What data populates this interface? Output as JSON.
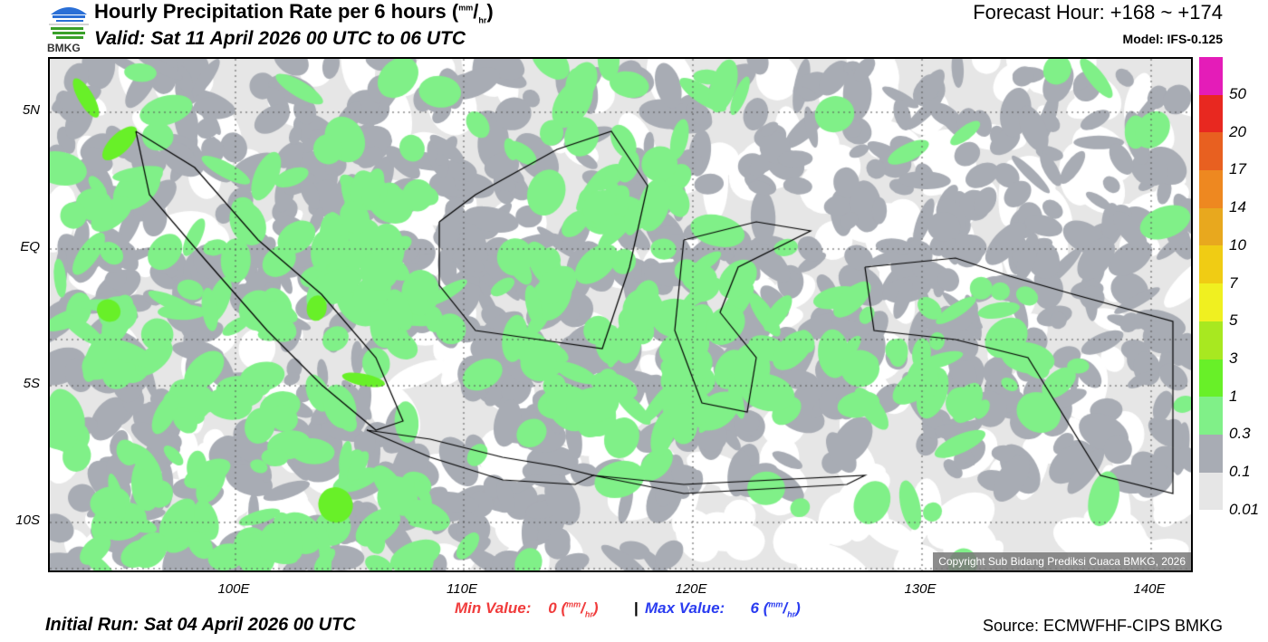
{
  "header": {
    "title": "Hourly Precipitation Rate per 6 hours",
    "unit_num": "mm",
    "unit_den": "hr",
    "valid": "Valid: Sat 11 April 2026 00 UTC to 06 UTC",
    "forecast_hour": "Forecast Hour: +168 ~ +174",
    "model": "Model: IFS-0.125",
    "logo_text": "BMKG"
  },
  "map": {
    "lat_labels": [
      "5N",
      "EQ",
      "5S",
      "10S"
    ],
    "lon_labels": [
      "100E",
      "110E",
      "120E",
      "130E",
      "140E"
    ],
    "copyright": "Copyright Sub Bidang Prediksi Cuaca BMKG, 2026"
  },
  "legend": {
    "labels": [
      "50",
      "20",
      "17",
      "14",
      "10",
      "7",
      "5",
      "3",
      "1",
      "0.3",
      "0.1",
      "0.01"
    ],
    "colors": [
      "#e41cb8",
      "#e82820",
      "#e86020",
      "#ee8820",
      "#e8a81e",
      "#f0cc14",
      "#f0f020",
      "#a8e820",
      "#68f028",
      "#80f088",
      "#a8acb4",
      "#e6e6e6"
    ]
  },
  "footer": {
    "min_label": "Min Value:",
    "min_value": "0",
    "max_label": "Max Value:",
    "max_value": "6",
    "unit_num": "mm",
    "unit_den": "hr",
    "separator": "|",
    "initial_run": "Initial Run: Sat 04 April 2026 00 UTC",
    "source": "Source: ECMWFHF-CIPS BMKG"
  }
}
